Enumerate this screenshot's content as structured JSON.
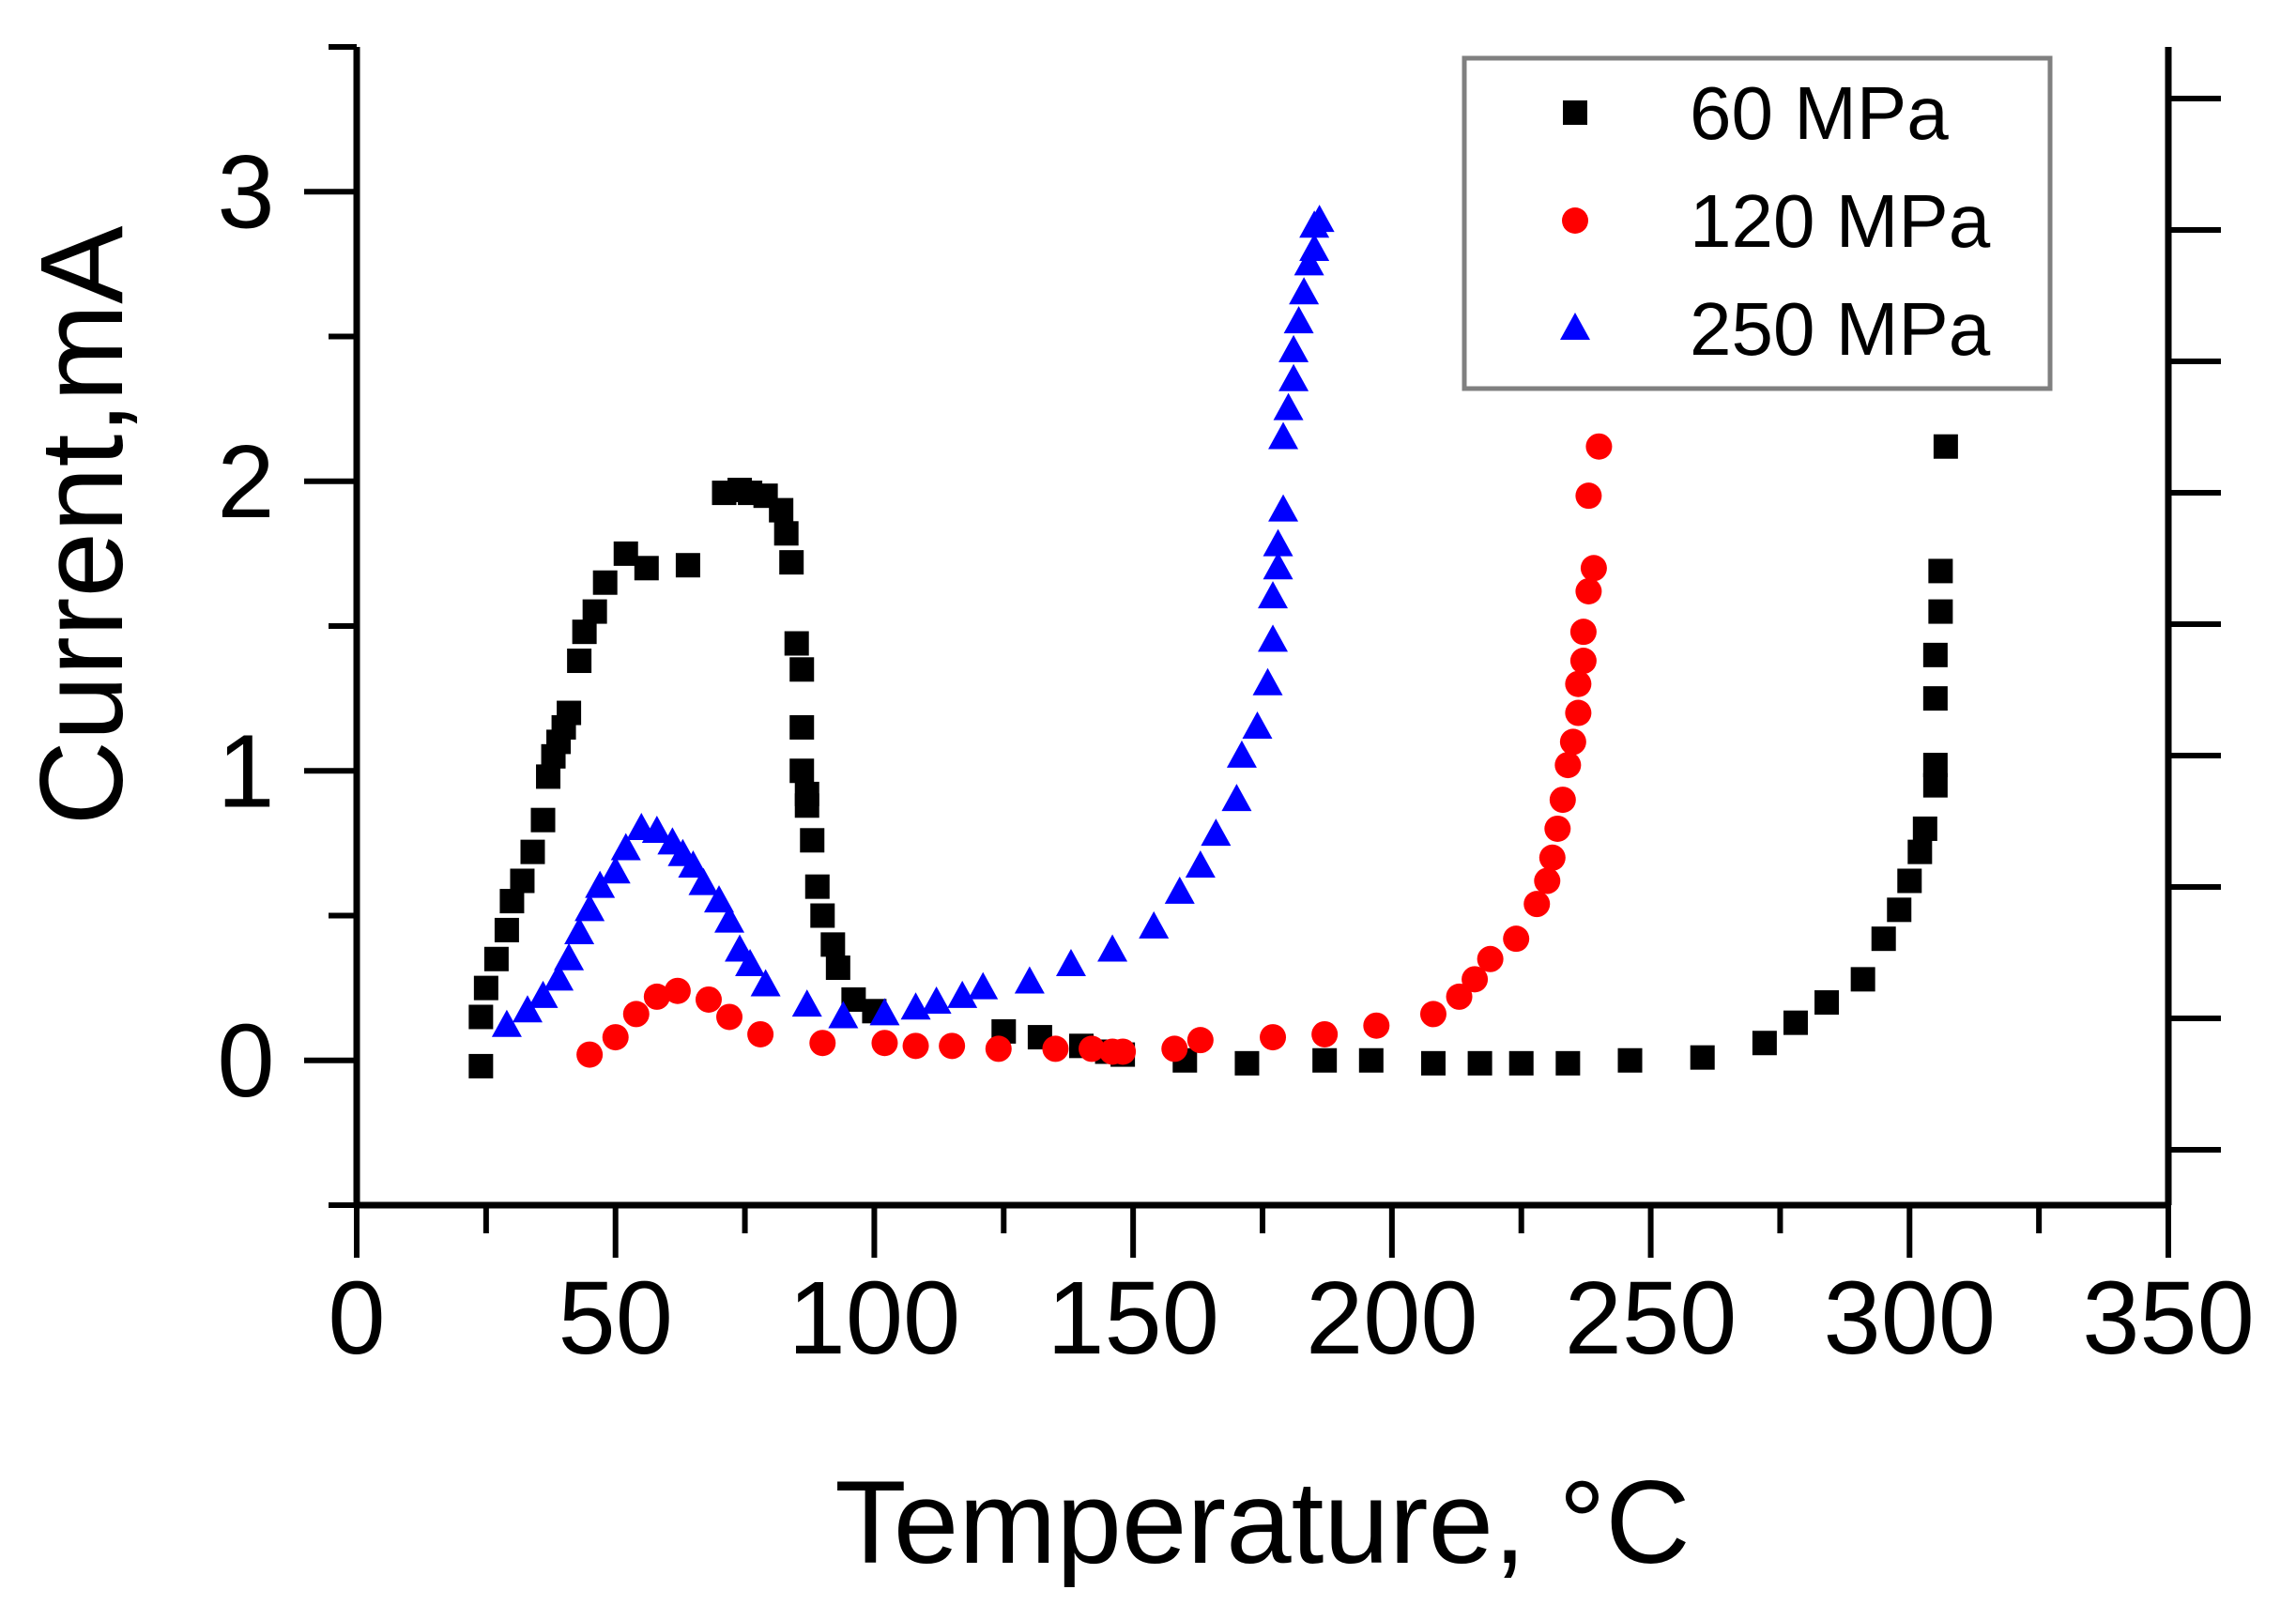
{
  "chart_data": {
    "type": "scatter",
    "title": "",
    "xlabel": "Temperature, °C",
    "ylabel": "Current,mA",
    "xlim": [
      0,
      350
    ],
    "ylim": [
      -0.5,
      3.5
    ],
    "x_ticks": [
      "0",
      "50",
      "100",
      "150",
      "200",
      "250",
      "300",
      "350"
    ],
    "y_ticks": [
      "0",
      "1",
      "2",
      "3"
    ],
    "legend_position": "top-right",
    "grid": false,
    "series": [
      {
        "name": "60 MPa",
        "marker": "square",
        "color": "#000000",
        "x": [
          24,
          24,
          25,
          27,
          29,
          30,
          32,
          34,
          36,
          37,
          38,
          39,
          40,
          41,
          43,
          44,
          46,
          48,
          52,
          56,
          64,
          71,
          74,
          76,
          79,
          82,
          83,
          84,
          85,
          86,
          86,
          86,
          87,
          87,
          88,
          89,
          90,
          92,
          93,
          96,
          100,
          125,
          132,
          140,
          145,
          148,
          160,
          172,
          187,
          196,
          208,
          217,
          225,
          234,
          246,
          260,
          272,
          278,
          284,
          291,
          295,
          298,
          300,
          302,
          303,
          305,
          305,
          305,
          305,
          306,
          306,
          307
        ],
        "y": [
          -0.02,
          0.15,
          0.25,
          0.35,
          0.45,
          0.55,
          0.62,
          0.72,
          0.83,
          0.98,
          1.05,
          1.1,
          1.15,
          1.2,
          1.38,
          1.48,
          1.55,
          1.65,
          1.75,
          1.7,
          1.71,
          1.96,
          1.97,
          1.96,
          1.95,
          1.9,
          1.82,
          1.72,
          1.44,
          1.35,
          1.15,
          1.0,
          0.92,
          0.88,
          0.76,
          0.6,
          0.5,
          0.4,
          0.32,
          0.21,
          0.17,
          0.1,
          0.08,
          0.05,
          0.03,
          0.02,
          0.0,
          -0.01,
          0.0,
          0.0,
          -0.01,
          -0.01,
          -0.01,
          -0.01,
          0.0,
          0.01,
          0.06,
          0.13,
          0.2,
          0.28,
          0.42,
          0.52,
          0.62,
          0.72,
          0.8,
          0.95,
          1.02,
          1.25,
          1.4,
          1.55,
          1.69,
          2.12
        ]
      },
      {
        "name": "120 MPa",
        "marker": "circle",
        "color": "#ff0000",
        "x": [
          45,
          50,
          54,
          58,
          62,
          68,
          72,
          78,
          90,
          102,
          108,
          115,
          124,
          135,
          142,
          146,
          148,
          158,
          163,
          177,
          187,
          197,
          208,
          213,
          216,
          219,
          224,
          228,
          230,
          231,
          232,
          233,
          234,
          235,
          236,
          236,
          237,
          237,
          238,
          238,
          239,
          240
        ],
        "y": [
          0.02,
          0.08,
          0.16,
          0.22,
          0.24,
          0.21,
          0.15,
          0.09,
          0.06,
          0.06,
          0.05,
          0.05,
          0.04,
          0.04,
          0.04,
          0.03,
          0.03,
          0.04,
          0.07,
          0.08,
          0.09,
          0.12,
          0.16,
          0.22,
          0.28,
          0.35,
          0.42,
          0.54,
          0.62,
          0.7,
          0.8,
          0.9,
          1.02,
          1.1,
          1.2,
          1.3,
          1.38,
          1.48,
          1.62,
          1.95,
          1.7,
          2.12
        ]
      },
      {
        "name": "250 MPa",
        "marker": "triangle",
        "color": "#0000ff",
        "x": [
          29,
          33,
          36,
          39,
          41,
          43,
          45,
          47,
          50,
          52,
          55,
          58,
          61,
          63,
          65,
          67,
          70,
          72,
          74,
          76,
          79,
          87,
          94,
          102,
          108,
          112,
          117,
          121,
          130,
          138,
          146,
          154,
          159,
          163,
          166,
          170,
          171,
          174,
          176,
          177,
          177,
          178,
          178,
          179,
          179,
          180,
          181,
          181,
          182,
          183,
          184,
          185,
          185,
          186
        ],
        "y": [
          0.12,
          0.17,
          0.22,
          0.28,
          0.35,
          0.44,
          0.52,
          0.6,
          0.65,
          0.73,
          0.8,
          0.79,
          0.75,
          0.71,
          0.67,
          0.61,
          0.55,
          0.48,
          0.38,
          0.33,
          0.26,
          0.19,
          0.15,
          0.16,
          0.18,
          0.2,
          0.22,
          0.25,
          0.27,
          0.33,
          0.38,
          0.46,
          0.58,
          0.67,
          0.78,
          0.9,
          1.05,
          1.15,
          1.3,
          1.45,
          1.6,
          1.7,
          1.78,
          1.9,
          2.15,
          2.25,
          2.35,
          2.45,
          2.55,
          2.65,
          2.75,
          2.8,
          2.88,
          2.9
        ]
      }
    ]
  }
}
